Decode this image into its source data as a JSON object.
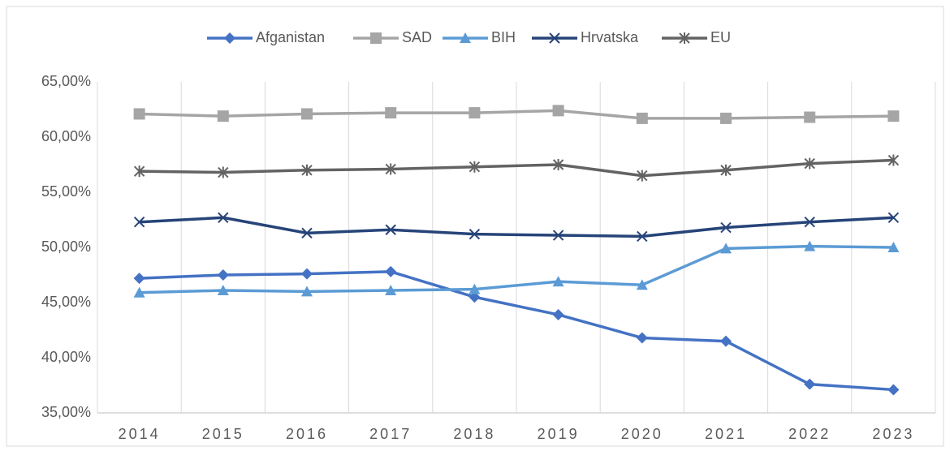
{
  "chart_data": {
    "type": "line",
    "categories": [
      "2014",
      "2015",
      "2016",
      "2017",
      "2018",
      "2019",
      "2020",
      "2021",
      "2022",
      "2023"
    ],
    "series": [
      {
        "name": "Afganistan",
        "color": "#4472c4",
        "marker": "diamond",
        "values": [
          47.2,
          47.5,
          47.6,
          47.8,
          45.5,
          43.9,
          41.8,
          41.5,
          37.6,
          37.1
        ]
      },
      {
        "name": "SAD",
        "color": "#a5a5a5",
        "marker": "square",
        "values": [
          62.1,
          61.9,
          62.1,
          62.2,
          62.2,
          62.4,
          61.7,
          61.7,
          61.8,
          61.9
        ]
      },
      {
        "name": "BIH",
        "color": "#5b9bd5",
        "marker": "triangle",
        "values": [
          45.9,
          46.1,
          46.0,
          46.1,
          46.2,
          46.9,
          46.6,
          49.9,
          50.1,
          50.0
        ]
      },
      {
        "name": "Hrvatska",
        "color": "#264478",
        "marker": "x",
        "values": [
          52.3,
          52.7,
          51.3,
          51.6,
          51.2,
          51.1,
          51.0,
          51.8,
          52.3,
          52.7
        ]
      },
      {
        "name": "EU",
        "color": "#636363",
        "marker": "star",
        "values": [
          56.9,
          56.8,
          57.0,
          57.1,
          57.3,
          57.5,
          56.5,
          57.0,
          57.6,
          57.9
        ]
      }
    ],
    "ylim": [
      35,
      65
    ],
    "yticks": [
      {
        "value": 35,
        "label": "35,00%"
      },
      {
        "value": 40,
        "label": "40,00%"
      },
      {
        "value": 45,
        "label": "45,00%"
      },
      {
        "value": 50,
        "label": "50,00%"
      },
      {
        "value": 55,
        "label": "55,00%"
      },
      {
        "value": 60,
        "label": "60,00%"
      },
      {
        "value": 65,
        "label": "65,00%"
      }
    ],
    "grid": "x",
    "legend": "top"
  }
}
